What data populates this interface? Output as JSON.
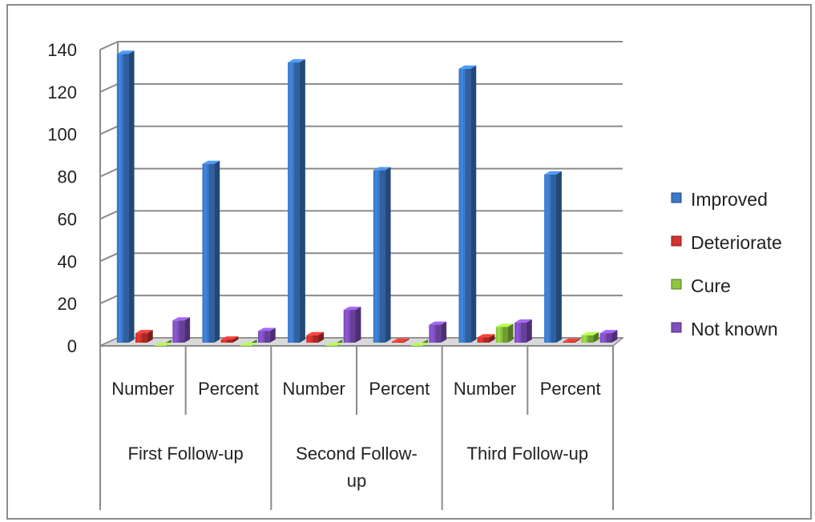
{
  "chart_data": {
    "type": "bar",
    "subtype": "3d-clustered-column",
    "groups": [
      {
        "label": "First Follow-up",
        "categories": [
          "Number",
          "Percent"
        ]
      },
      {
        "label": "Second Follow-up",
        "categories": [
          "Number",
          "Percent"
        ]
      },
      {
        "label": "Third Follow-up",
        "categories": [
          "Number",
          "Percent"
        ]
      }
    ],
    "categories": [
      "Number",
      "Percent",
      "Number",
      "Percent",
      "Number",
      "Percent"
    ],
    "series": [
      {
        "name": "Improved",
        "color": "#3b78c8",
        "values": [
          138,
          86,
          134,
          83,
          131,
          81
        ]
      },
      {
        "name": "Deteriorate",
        "color": "#d2322d",
        "values": [
          6,
          3,
          5,
          2,
          4,
          2
        ]
      },
      {
        "name": "Cure",
        "color": "#8cc63e",
        "values": [
          0,
          0,
          0,
          0,
          9,
          5
        ]
      },
      {
        "name": "Not known",
        "color": "#7f4fbf",
        "values": [
          12,
          7,
          17,
          10,
          11,
          6
        ]
      }
    ],
    "ylim": [
      0,
      140
    ],
    "yticks": [
      0,
      20,
      40,
      60,
      80,
      100,
      120,
      140
    ],
    "grid": true,
    "legend_position": "right",
    "title": "",
    "xlabel": "",
    "ylabel": ""
  }
}
